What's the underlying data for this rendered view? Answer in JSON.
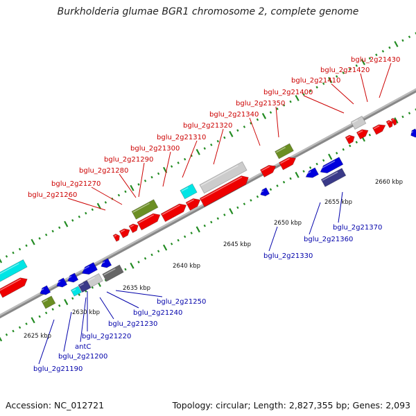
{
  "title": "Burkholderia glumae BGR1 chromosome 2, complete genome",
  "accession": "Accession: NC_012721",
  "summary": "Topology: circular; Length: 2,827,355 bp; Genes: 2,093",
  "colors": {
    "forward_gene": "#ee0000",
    "reverse_gene": "#0000dd",
    "forward_label": "#cc0000",
    "reverse_label": "#0000aa",
    "backbone": "#888888",
    "ticks": "#228b22",
    "olive": "#6b8e23",
    "cyan": "#00e5e5",
    "grey": "#cccccc",
    "navy": "#3a3a88",
    "dark_grey": "#666666"
  },
  "scale_labels": [
    "2625 kbp",
    "2630 kbp",
    "2635 kbp",
    "2640 kbp",
    "2645 kbp",
    "2650 kbp",
    "2655 kbp",
    "2660 kbp"
  ],
  "forward_genes": [
    "bglu_2g21260",
    "bglu_2g21270",
    "bglu_2g21280",
    "bglu_2g21290",
    "bglu_2g21300",
    "bglu_2g21310",
    "bglu_2g21320",
    "bglu_2g21340",
    "bglu_2g21350",
    "bglu_2g21400",
    "bglu_2g21410",
    "bglu_2g21420",
    "bglu_2g21430"
  ],
  "reverse_genes": [
    "bglu_2g21190",
    "bglu_2g21200",
    "antC",
    "bglu_2g21220",
    "bglu_2g21230",
    "bglu_2g21240",
    "bglu_2g21250",
    "bglu_2g21330",
    "bglu_2g21360",
    "bglu_2g21370"
  ]
}
